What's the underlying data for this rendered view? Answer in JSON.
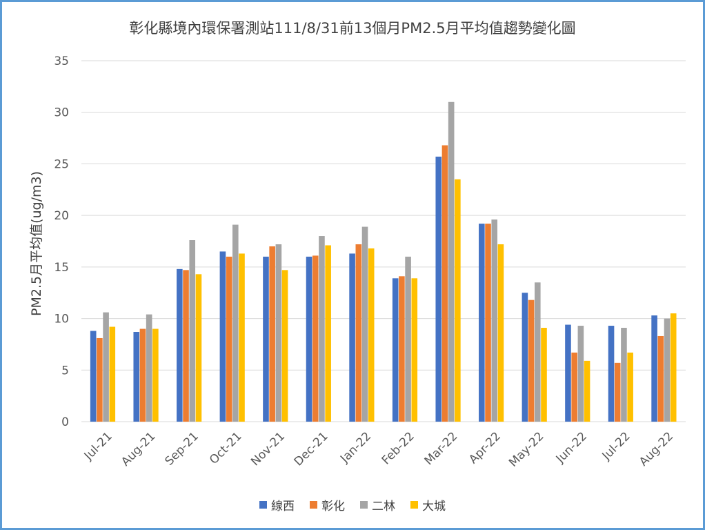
{
  "chart_data": {
    "type": "bar",
    "title": "彰化縣境內環保署測站111/8/31前13個月PM2.5月平均值趨勢變化圖",
    "xlabel": "",
    "ylabel": "PM2.5月平均值(ug/m3)",
    "ylim": [
      0,
      35
    ],
    "yticks": [
      0,
      5,
      10,
      15,
      20,
      25,
      30,
      35
    ],
    "grid": true,
    "legend_position": "bottom",
    "categories": [
      "Jul-21",
      "Aug-21",
      "Sep-21",
      "Oct-21",
      "Nov-21",
      "Dec-21",
      "Jan-22",
      "Feb-22",
      "Mar-22",
      "Apr-22",
      "May-22",
      "Jun-22",
      "Jul-22",
      "Aug-22"
    ],
    "series": [
      {
        "name": "線西",
        "color": "#4472c4",
        "values": [
          8.8,
          8.7,
          14.8,
          16.5,
          16.0,
          16.0,
          16.3,
          13.9,
          25.7,
          19.2,
          12.5,
          9.4,
          9.3,
          10.3
        ]
      },
      {
        "name": "彰化",
        "color": "#ed7d31",
        "values": [
          8.1,
          9.0,
          14.7,
          16.0,
          17.0,
          16.1,
          17.2,
          14.1,
          26.8,
          19.2,
          11.8,
          6.7,
          5.7,
          8.3
        ]
      },
      {
        "name": "二林",
        "color": "#a5a5a5",
        "values": [
          10.6,
          10.4,
          17.6,
          19.1,
          17.2,
          18.0,
          18.9,
          16.0,
          31.0,
          19.6,
          13.5,
          9.3,
          9.1,
          10.0
        ]
      },
      {
        "name": "大城",
        "color": "#ffc000",
        "values": [
          9.2,
          9.0,
          14.3,
          16.3,
          14.7,
          17.1,
          16.8,
          13.9,
          23.5,
          17.2,
          9.1,
          5.9,
          6.7,
          10.5
        ]
      }
    ]
  }
}
